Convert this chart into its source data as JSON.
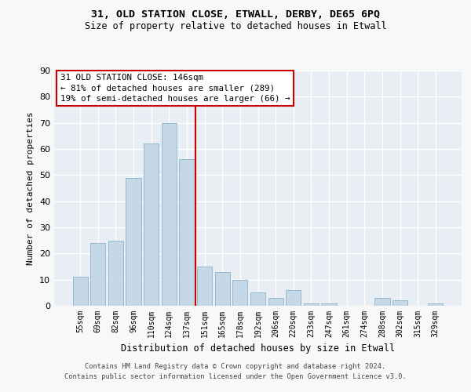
{
  "title_line1": "31, OLD STATION CLOSE, ETWALL, DERBY, DE65 6PQ",
  "title_line2": "Size of property relative to detached houses in Etwall",
  "xlabel": "Distribution of detached houses by size in Etwall",
  "ylabel": "Number of detached properties",
  "categories": [
    "55sqm",
    "69sqm",
    "82sqm",
    "96sqm",
    "110sqm",
    "124sqm",
    "137sqm",
    "151sqm",
    "165sqm",
    "178sqm",
    "192sqm",
    "206sqm",
    "220sqm",
    "233sqm",
    "247sqm",
    "261sqm",
    "274sqm",
    "288sqm",
    "302sqm",
    "315sqm",
    "329sqm"
  ],
  "values": [
    11,
    24,
    25,
    49,
    62,
    70,
    56,
    15,
    13,
    10,
    5,
    3,
    6,
    1,
    1,
    0,
    0,
    3,
    2,
    0,
    1
  ],
  "bar_color": "#c5d8e8",
  "bar_edge_color": "#8ab4cc",
  "vline_color": "#cc0000",
  "annotation_title": "31 OLD STATION CLOSE: 146sqm",
  "annotation_line1": "← 81% of detached houses are smaller (289)",
  "annotation_line2": "19% of semi-detached houses are larger (66) →",
  "annotation_box_color": "#ffffff",
  "annotation_box_edge_color": "#cc0000",
  "ylim": [
    0,
    90
  ],
  "yticks": [
    0,
    10,
    20,
    30,
    40,
    50,
    60,
    70,
    80,
    90
  ],
  "fig_background_color": "#f8f8f8",
  "axes_background_color": "#e8eef4",
  "grid_color": "#ffffff",
  "footer_line1": "Contains HM Land Registry data © Crown copyright and database right 2024.",
  "footer_line2": "Contains public sector information licensed under the Open Government Licence v3.0."
}
